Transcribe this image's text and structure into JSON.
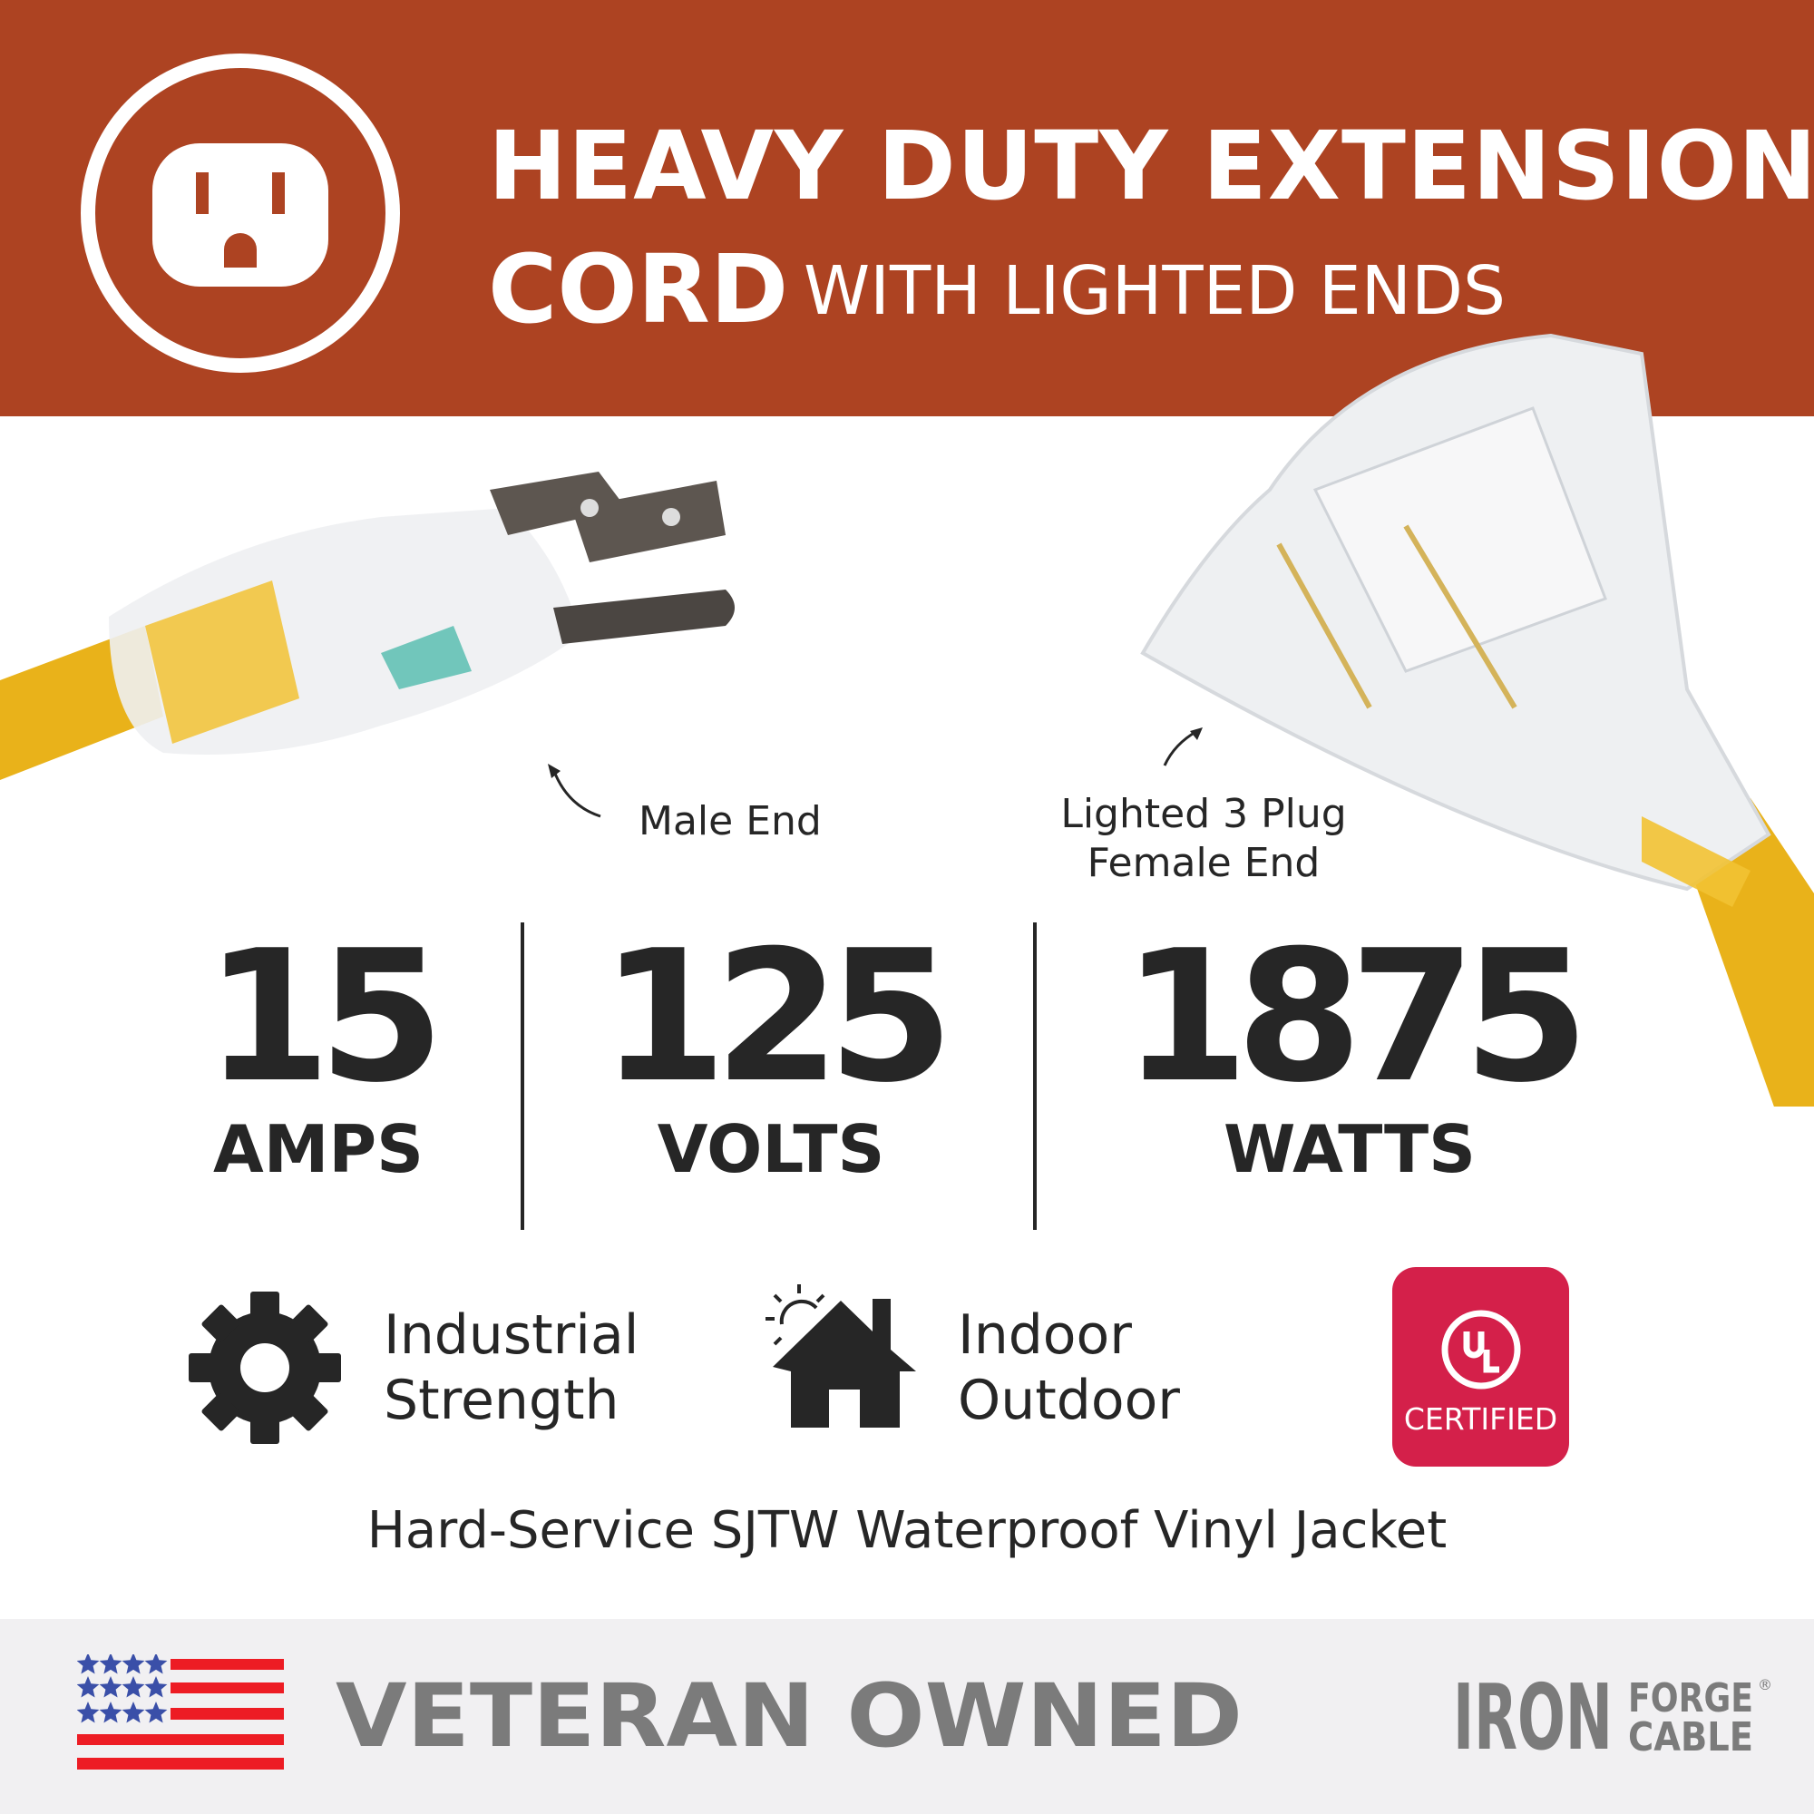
{
  "header": {
    "title_line1": "HEAVY DUTY EXTENSION",
    "title_line2": "CORD",
    "subtitle": "WITH LIGHTED ENDS",
    "icon": "outlet-icon",
    "background_color": "#AD4322"
  },
  "callouts": {
    "male_end": "Male End",
    "female_end_line1": "Lighted 3 Plug",
    "female_end_line2": "Female End"
  },
  "specs": [
    {
      "value": "15",
      "unit": "AMPS"
    },
    {
      "value": "125",
      "unit": "VOLTS"
    },
    {
      "value": "1875",
      "unit": "WATTS"
    }
  ],
  "features": [
    {
      "icon": "gear-icon",
      "line1": "Industrial",
      "line2": "Strength"
    },
    {
      "icon": "house-sun-icon",
      "line1": "Indoor",
      "line2": "Outdoor"
    }
  ],
  "certification": {
    "logo_text": "UL",
    "label": "CERTIFIED",
    "color": "#D4204A"
  },
  "tagline": "Hard-Service SJTW Waterproof Vinyl Jacket",
  "footer": {
    "badge_text": "VETERAN OWNED",
    "flag_icon": "us-flag-icon",
    "brand_main": "IRON",
    "brand_line1": "FORGE",
    "brand_line2": "CABLE",
    "brand_mark": "®"
  }
}
